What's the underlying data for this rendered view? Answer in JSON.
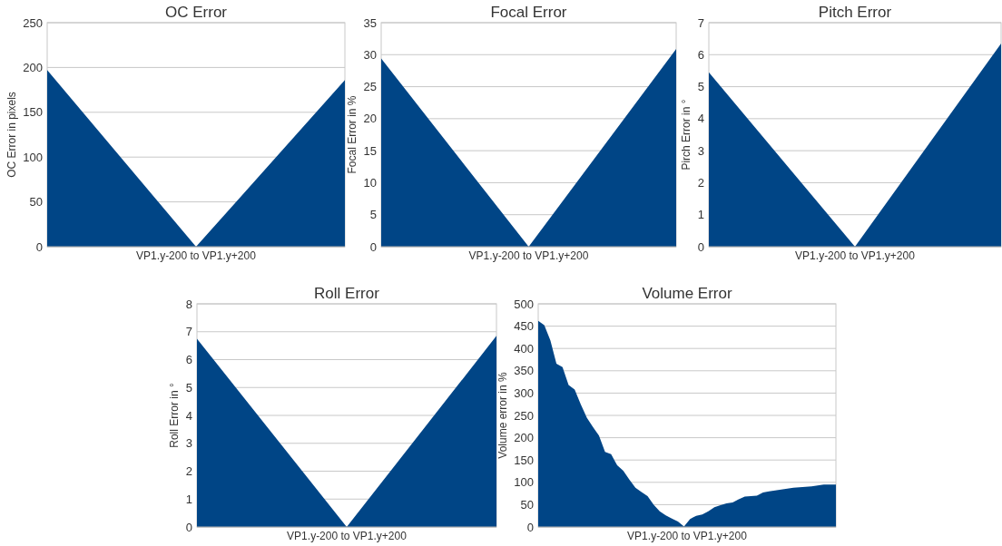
{
  "chart_data": [
    {
      "type": "area",
      "title": "OC Error",
      "xlabel": "VP1.y-200 to VP1.y+200",
      "ylabel": "OC Error in pixels",
      "categories": [
        null,
        null,
        null
      ],
      "values": [
        197,
        0,
        186
      ],
      "color": "#004586",
      "ylim": [
        0,
        250
      ],
      "yticks": [
        0,
        50,
        100,
        150,
        200,
        250
      ],
      "grid": "y"
    },
    {
      "type": "area",
      "title": "Focal Error",
      "xlabel": "VP1.y-200 to VP1.y+200",
      "ylabel": "Focal Error in %",
      "categories": [
        null,
        null,
        null
      ],
      "values": [
        29.4,
        0,
        30.9
      ],
      "color": "#004586",
      "ylim": [
        0,
        35
      ],
      "yticks": [
        0,
        5,
        10,
        15,
        20,
        25,
        30,
        35
      ],
      "grid": "y"
    },
    {
      "type": "area",
      "title": "Pitch Error",
      "xlabel": "VP1.y-200 to VP1.y+200",
      "ylabel": "Pirch Error in °",
      "categories": [
        null,
        null,
        null
      ],
      "values": [
        5.45,
        0,
        6.35
      ],
      "color": "#004586",
      "ylim": [
        0,
        7
      ],
      "yticks": [
        0,
        1,
        2,
        3,
        4,
        5,
        6,
        7
      ],
      "grid": "y"
    },
    {
      "type": "area",
      "title": "Roll Error",
      "xlabel": "VP1.y-200 to VP1.y+200",
      "ylabel": "Roll Error in °",
      "categories": [
        null,
        null,
        null
      ],
      "values": [
        6.75,
        0,
        6.85
      ],
      "color": "#004586",
      "ylim": [
        0,
        8
      ],
      "yticks": [
        0,
        1,
        2,
        3,
        4,
        5,
        6,
        7,
        8
      ],
      "grid": "y"
    },
    {
      "type": "area",
      "title": "Volume Error",
      "xlabel": "VP1.y-200 to VP1.y+200",
      "ylabel": "Volume error in %",
      "categories": [
        null,
        null,
        null,
        null,
        null,
        null,
        null,
        null,
        null,
        null,
        null,
        null,
        null,
        null,
        null,
        null,
        null,
        null,
        null,
        null,
        null,
        null,
        null,
        null,
        null,
        null,
        null,
        null,
        null,
        null,
        null,
        null,
        null,
        null,
        null,
        null,
        null,
        null,
        null,
        null,
        null,
        null,
        null,
        null,
        null,
        null,
        null,
        null,
        null,
        null
      ],
      "values": [
        462,
        452,
        418,
        366,
        358,
        318,
        308,
        275,
        245,
        224,
        205,
        168,
        163,
        138,
        126,
        106,
        88,
        78,
        69,
        50,
        35,
        26,
        19,
        12,
        1,
        18,
        25,
        28,
        35,
        44,
        49,
        53,
        55,
        62,
        68,
        69,
        70,
        77,
        80,
        82,
        84,
        86,
        88,
        89,
        90,
        91,
        93,
        95,
        95,
        95
      ],
      "color": "#004586",
      "ylim": [
        0,
        500
      ],
      "yticks": [
        0,
        50,
        100,
        150,
        200,
        250,
        300,
        350,
        400,
        450,
        500
      ],
      "grid": "y"
    }
  ]
}
